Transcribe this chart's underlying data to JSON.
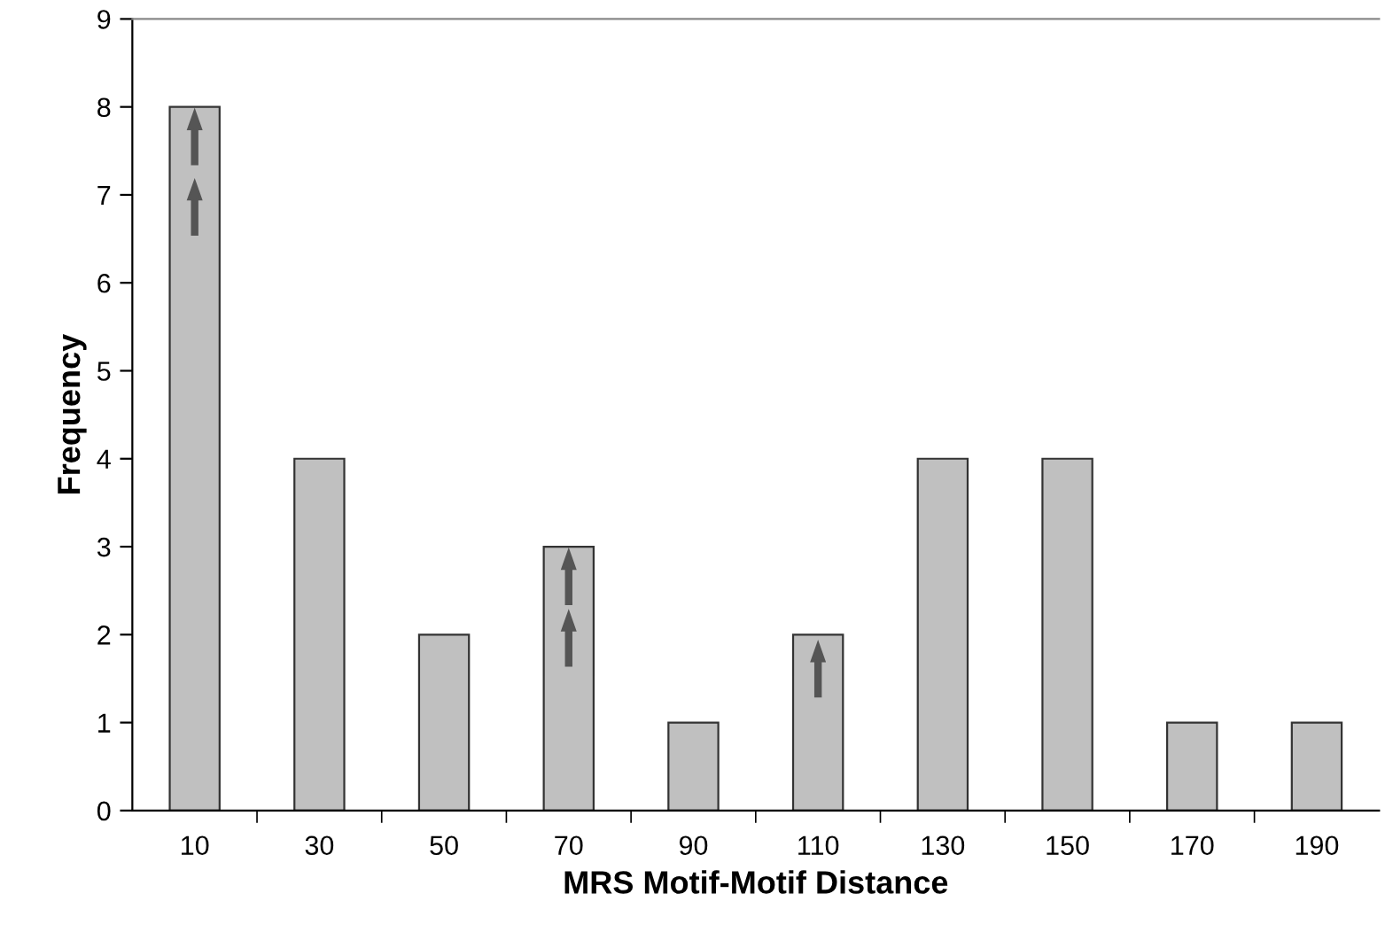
{
  "chart_data": {
    "type": "bar",
    "xlabel": "MRS Motif-Motif Distance",
    "ylabel": "Frequency",
    "categories": [
      "10",
      "30",
      "50",
      "70",
      "90",
      "110",
      "130",
      "150",
      "170",
      "190"
    ],
    "values": [
      8,
      4,
      2,
      3,
      1,
      2,
      4,
      4,
      1,
      1
    ],
    "color": "#c0c0c0",
    "ylim": [
      0,
      9
    ],
    "yticks": [
      0,
      1,
      2,
      3,
      4,
      5,
      6,
      7,
      8,
      9
    ],
    "grid": false,
    "legend": false
  }
}
